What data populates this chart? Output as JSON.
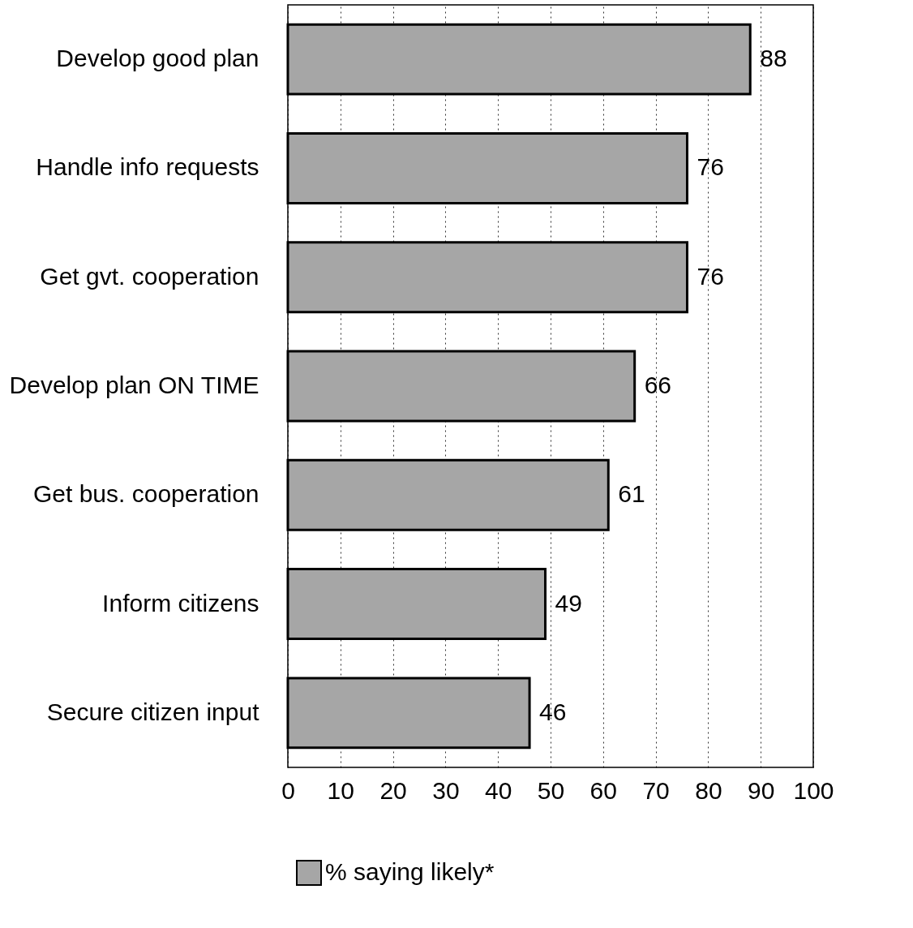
{
  "chart_data": {
    "type": "bar",
    "orientation": "horizontal",
    "categories": [
      "Develop good plan",
      "Handle info requests",
      "Get gvt. cooperation",
      "Develop plan ON TIME",
      "Get bus. cooperation",
      "Inform citizens",
      "Secure citizen input"
    ],
    "series": [
      {
        "name": "% saying likely*",
        "color": "#a6a6a6",
        "values": [
          88,
          76,
          76,
          66,
          61,
          49,
          46
        ]
      }
    ],
    "xlim": [
      0,
      100
    ],
    "xticks": [
      0,
      10,
      20,
      30,
      40,
      50,
      60,
      70,
      80,
      90,
      100
    ],
    "grid": "x",
    "legend": "bottom",
    "data_labels": true
  }
}
